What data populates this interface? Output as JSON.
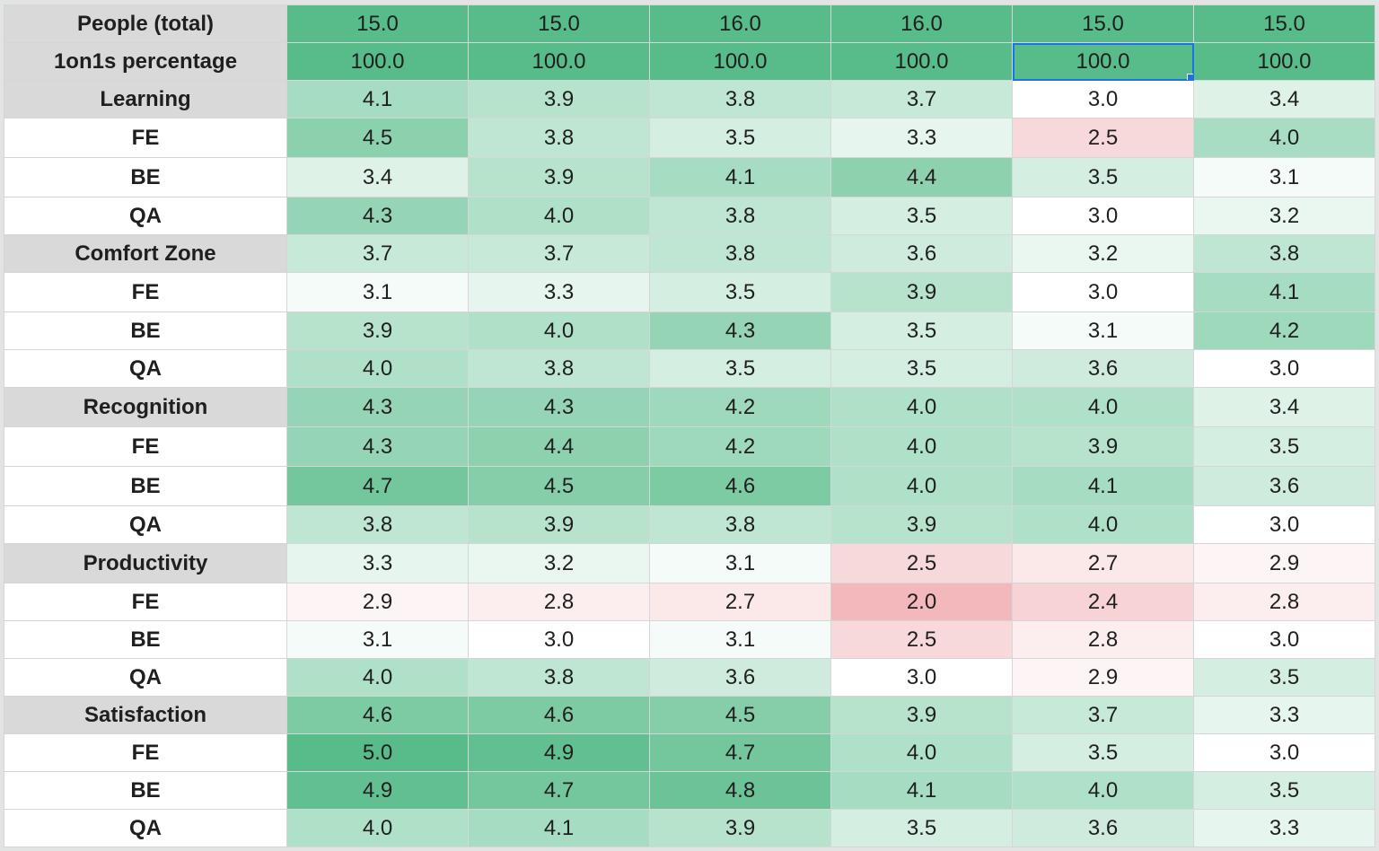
{
  "rows": [
    {
      "label": "People (total)",
      "type": "section",
      "values": [
        "15.0",
        "15.0",
        "16.0",
        "16.0",
        "15.0",
        "15.0"
      ],
      "bg": [
        "#57bb8a",
        "#57bb8a",
        "#57bb8a",
        "#57bb8a",
        "#57bb8a",
        "#57bb8a"
      ]
    },
    {
      "label": "1on1s percentage",
      "type": "section",
      "values": [
        "100.0",
        "100.0",
        "100.0",
        "100.0",
        "100.0",
        "100.0"
      ],
      "bg": [
        "#57bb8a",
        "#57bb8a",
        "#57bb8a",
        "#57bb8a",
        "#57bb8a",
        "#57bb8a"
      ]
    },
    {
      "label": "Learning",
      "type": "section",
      "values": [
        "4.1",
        "3.9",
        "3.8",
        "3.7",
        "3.0",
        "3.4"
      ],
      "bg": [
        "#a6dcc1",
        "#b7e3cd",
        "#bfe6d3",
        "#c7e9d8",
        "#ffffff",
        "#def2e8"
      ]
    },
    {
      "label": "FE",
      "type": "sub",
      "values": [
        "4.5",
        "3.8",
        "3.5",
        "3.3",
        "2.5",
        "4.0"
      ],
      "bg": [
        "#8cd1ae",
        "#bfe6d3",
        "#d5eee2",
        "#e6f5ee",
        "#f8d9db",
        "#a9ddc3"
      ]
    },
    {
      "label": "BE",
      "type": "sub",
      "values": [
        "3.4",
        "3.9",
        "4.1",
        "4.4",
        "3.5",
        "3.1"
      ],
      "bg": [
        "#def2e8",
        "#b7e3cd",
        "#a6dcc1",
        "#8dd1af",
        "#d5eee2",
        "#f5fbf8"
      ]
    },
    {
      "label": "QA",
      "type": "sub",
      "values": [
        "4.3",
        "4.0",
        "3.8",
        "3.5",
        "3.0",
        "3.2"
      ],
      "bg": [
        "#95d5b5",
        "#afe0c8",
        "#bfe6d3",
        "#d5eee2",
        "#ffffff",
        "#eaf6f0"
      ]
    },
    {
      "label": "Comfort Zone",
      "type": "section",
      "values": [
        "3.7",
        "3.7",
        "3.8",
        "3.6",
        "3.2",
        "3.8"
      ],
      "bg": [
        "#c7e9d8",
        "#c7e9d8",
        "#bfe6d3",
        "#cfebdd",
        "#eaf6f0",
        "#bfe6d3"
      ]
    },
    {
      "label": "FE",
      "type": "sub",
      "values": [
        "3.1",
        "3.3",
        "3.5",
        "3.9",
        "3.0",
        "4.1"
      ],
      "bg": [
        "#f5fbf8",
        "#e6f5ee",
        "#d5eee2",
        "#b7e3cd",
        "#ffffff",
        "#a6dcc1"
      ]
    },
    {
      "label": "BE",
      "type": "sub",
      "values": [
        "3.9",
        "4.0",
        "4.3",
        "3.5",
        "3.1",
        "4.2"
      ],
      "bg": [
        "#b7e3cd",
        "#afe0c8",
        "#95d5b5",
        "#d5eee2",
        "#f5fbf8",
        "#9ed9bb"
      ]
    },
    {
      "label": "QA",
      "type": "sub",
      "values": [
        "4.0",
        "3.8",
        "3.5",
        "3.5",
        "3.6",
        "3.0"
      ],
      "bg": [
        "#afe0c8",
        "#bfe6d3",
        "#d5eee2",
        "#d5eee2",
        "#cfebdd",
        "#ffffff"
      ]
    },
    {
      "label": "Recognition",
      "type": "section",
      "values": [
        "4.3",
        "4.3",
        "4.2",
        "4.0",
        "4.0",
        "3.4"
      ],
      "bg": [
        "#95d5b5",
        "#95d5b5",
        "#9ed9bb",
        "#afe0c8",
        "#afe0c8",
        "#def2e8"
      ]
    },
    {
      "label": "FE",
      "type": "sub",
      "values": [
        "4.3",
        "4.4",
        "4.2",
        "4.0",
        "3.9",
        "3.5"
      ],
      "bg": [
        "#95d5b5",
        "#8dd1af",
        "#9ed9bb",
        "#afe0c8",
        "#b7e3cd",
        "#d5eee2"
      ]
    },
    {
      "label": "BE",
      "type": "sub",
      "values": [
        "4.7",
        "4.5",
        "4.6",
        "4.0",
        "4.1",
        "3.6"
      ],
      "bg": [
        "#74c79d",
        "#86cea9",
        "#7dcba3",
        "#afe0c8",
        "#a6dcc1",
        "#cfebdd"
      ]
    },
    {
      "label": "QA",
      "type": "sub",
      "values": [
        "3.8",
        "3.9",
        "3.8",
        "3.9",
        "4.0",
        "3.0"
      ],
      "bg": [
        "#bfe6d3",
        "#b7e3cd",
        "#bfe6d3",
        "#b7e3cd",
        "#afe0c8",
        "#ffffff"
      ]
    },
    {
      "label": "Productivity",
      "type": "section",
      "values": [
        "3.3",
        "3.2",
        "3.1",
        "2.5",
        "2.7",
        "2.9"
      ],
      "bg": [
        "#e6f5ee",
        "#eaf6f0",
        "#f5fbf8",
        "#f8d9db",
        "#fbe8e9",
        "#fdf5f5"
      ]
    },
    {
      "label": "FE",
      "type": "sub",
      "values": [
        "2.9",
        "2.8",
        "2.7",
        "2.0",
        "2.4",
        "2.8"
      ],
      "bg": [
        "#fdf5f5",
        "#fcedee",
        "#fbe8e9",
        "#f2b8bb",
        "#f7d3d5",
        "#fcedee"
      ]
    },
    {
      "label": "BE",
      "type": "sub",
      "values": [
        "3.1",
        "3.0",
        "3.1",
        "2.5",
        "2.8",
        "3.0"
      ],
      "bg": [
        "#f5fbf8",
        "#ffffff",
        "#f5fbf8",
        "#f8d9db",
        "#fcedee",
        "#ffffff"
      ]
    },
    {
      "label": "QA",
      "type": "sub",
      "values": [
        "4.0",
        "3.8",
        "3.6",
        "3.0",
        "2.9",
        "3.5"
      ],
      "bg": [
        "#afe0c8",
        "#bfe6d3",
        "#cfebdd",
        "#ffffff",
        "#fdf5f5",
        "#d5eee2"
      ]
    },
    {
      "label": "Satisfaction",
      "type": "section",
      "values": [
        "4.6",
        "4.6",
        "4.5",
        "3.9",
        "3.7",
        "3.3"
      ],
      "bg": [
        "#7dcba3",
        "#7dcba3",
        "#86cea9",
        "#b7e3cd",
        "#c7e9d8",
        "#e6f5ee"
      ]
    },
    {
      "label": "FE",
      "type": "sub",
      "values": [
        "5.0",
        "4.9",
        "4.7",
        "4.0",
        "3.5",
        "3.0"
      ],
      "bg": [
        "#57bb8a",
        "#62bf91",
        "#74c79d",
        "#afe0c8",
        "#d5eee2",
        "#ffffff"
      ]
    },
    {
      "label": "BE",
      "type": "sub",
      "values": [
        "4.9",
        "4.7",
        "4.8",
        "4.1",
        "4.0",
        "3.5"
      ],
      "bg": [
        "#62bf91",
        "#74c79d",
        "#6bc397",
        "#a6dcc1",
        "#afe0c8",
        "#d5eee2"
      ]
    },
    {
      "label": "QA",
      "type": "sub",
      "values": [
        "4.0",
        "4.1",
        "3.9",
        "3.5",
        "3.6",
        "3.3"
      ],
      "bg": [
        "#afe0c8",
        "#a6dcc1",
        "#b7e3cd",
        "#d5eee2",
        "#cfebdd",
        "#e6f5ee"
      ]
    }
  ],
  "selected_cell": {
    "row": 1,
    "col": 4
  }
}
